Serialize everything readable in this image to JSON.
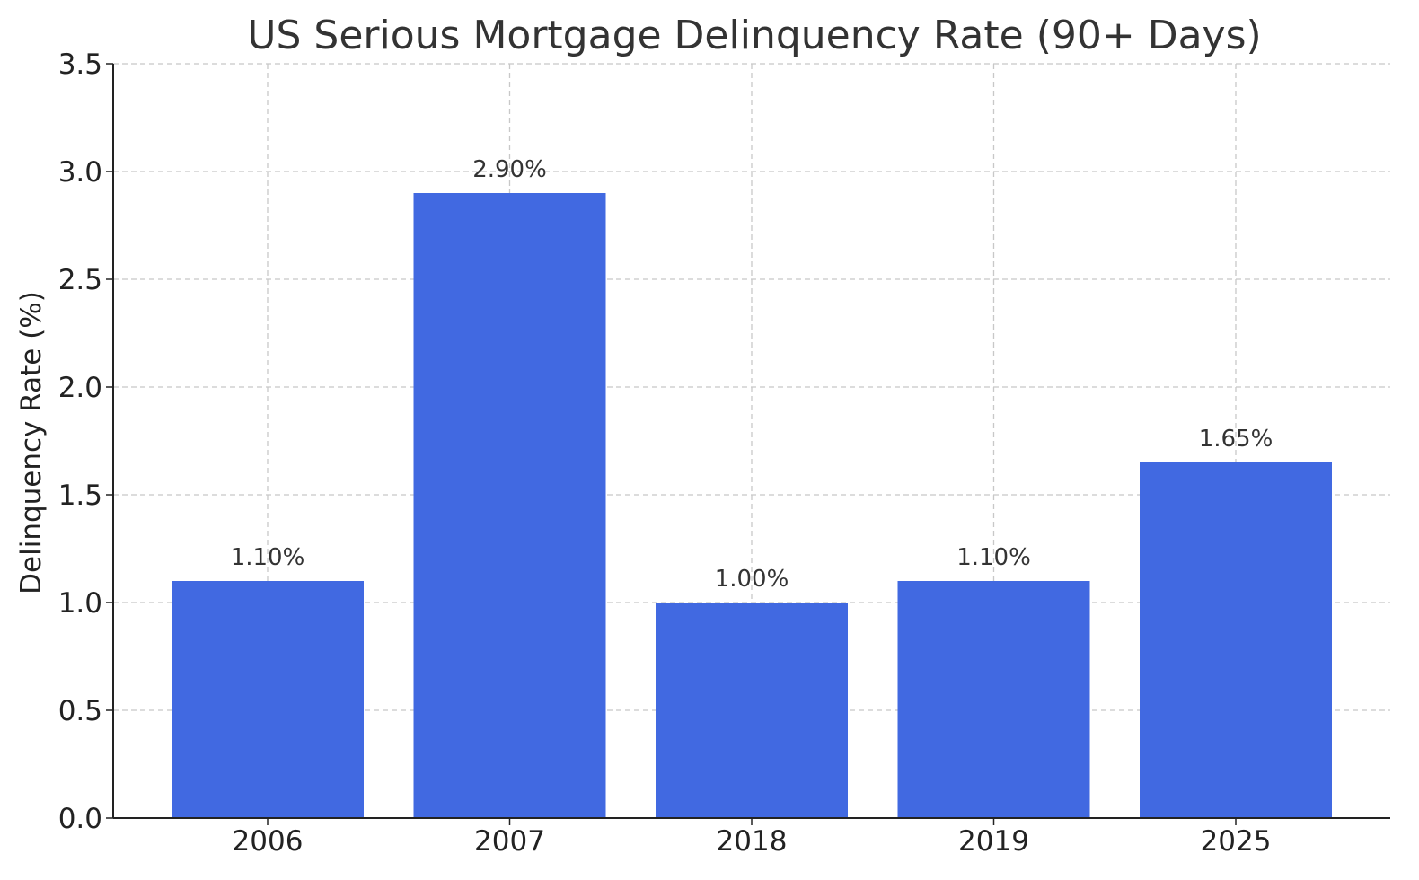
{
  "chart_data": {
    "type": "bar",
    "title": "US Serious Mortgage Delinquency Rate (90+ Days)",
    "xlabel": "",
    "ylabel": "Delinquency Rate (%)",
    "categories": [
      "2006",
      "2007",
      "2018",
      "2019",
      "2025"
    ],
    "values": [
      1.1,
      2.9,
      1.0,
      1.1,
      1.65
    ],
    "data_labels": [
      "1.10%",
      "2.90%",
      "1.00%",
      "1.10%",
      "1.65%"
    ],
    "ylim": [
      0,
      3.5
    ],
    "yticks": [
      0.0,
      0.5,
      1.0,
      1.5,
      2.0,
      2.5,
      3.0,
      3.5
    ],
    "ytick_labels": [
      "0.0",
      "0.5",
      "1.0",
      "1.5",
      "2.0",
      "2.5",
      "3.0",
      "3.5"
    ],
    "grid": true,
    "bar_color": "#4169e1"
  }
}
